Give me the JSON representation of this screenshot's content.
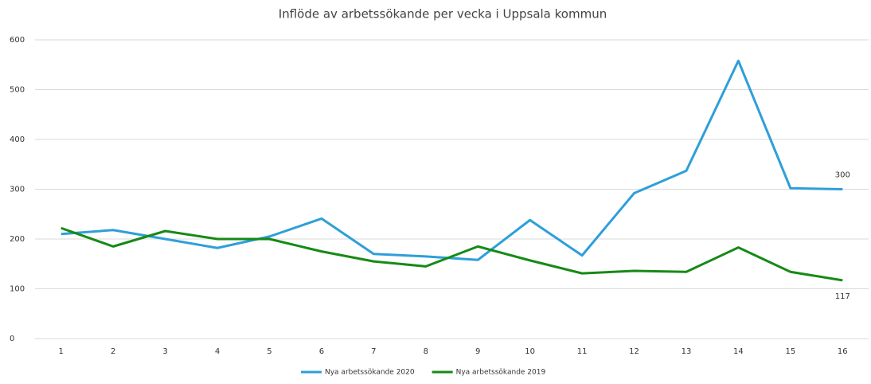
{
  "chart_data": {
    "type": "line",
    "title": "Inflöde av arbetssökande per vecka i Uppsala kommun",
    "categories": [
      "1",
      "2",
      "3",
      "4",
      "5",
      "6",
      "7",
      "8",
      "9",
      "10",
      "11",
      "12",
      "13",
      "14",
      "15",
      "16"
    ],
    "series": [
      {
        "name": "Nya arbetssökande 2020",
        "color": "#2e9fd9",
        "values": [
          210,
          218,
          200,
          182,
          205,
          241,
          170,
          165,
          158,
          238,
          167,
          292,
          337,
          558,
          302,
          300
        ]
      },
      {
        "name": "Nya arbetssökande 2019",
        "color": "#168a16",
        "values": [
          222,
          185,
          216,
          200,
          200,
          175,
          155,
          145,
          185,
          157,
          131,
          136,
          134,
          183,
          134,
          117
        ]
      }
    ],
    "ylim": [
      0,
      600
    ],
    "yticks": [
      0,
      100,
      200,
      300,
      400,
      500,
      600
    ],
    "grid": true,
    "legend": "bottom"
  }
}
